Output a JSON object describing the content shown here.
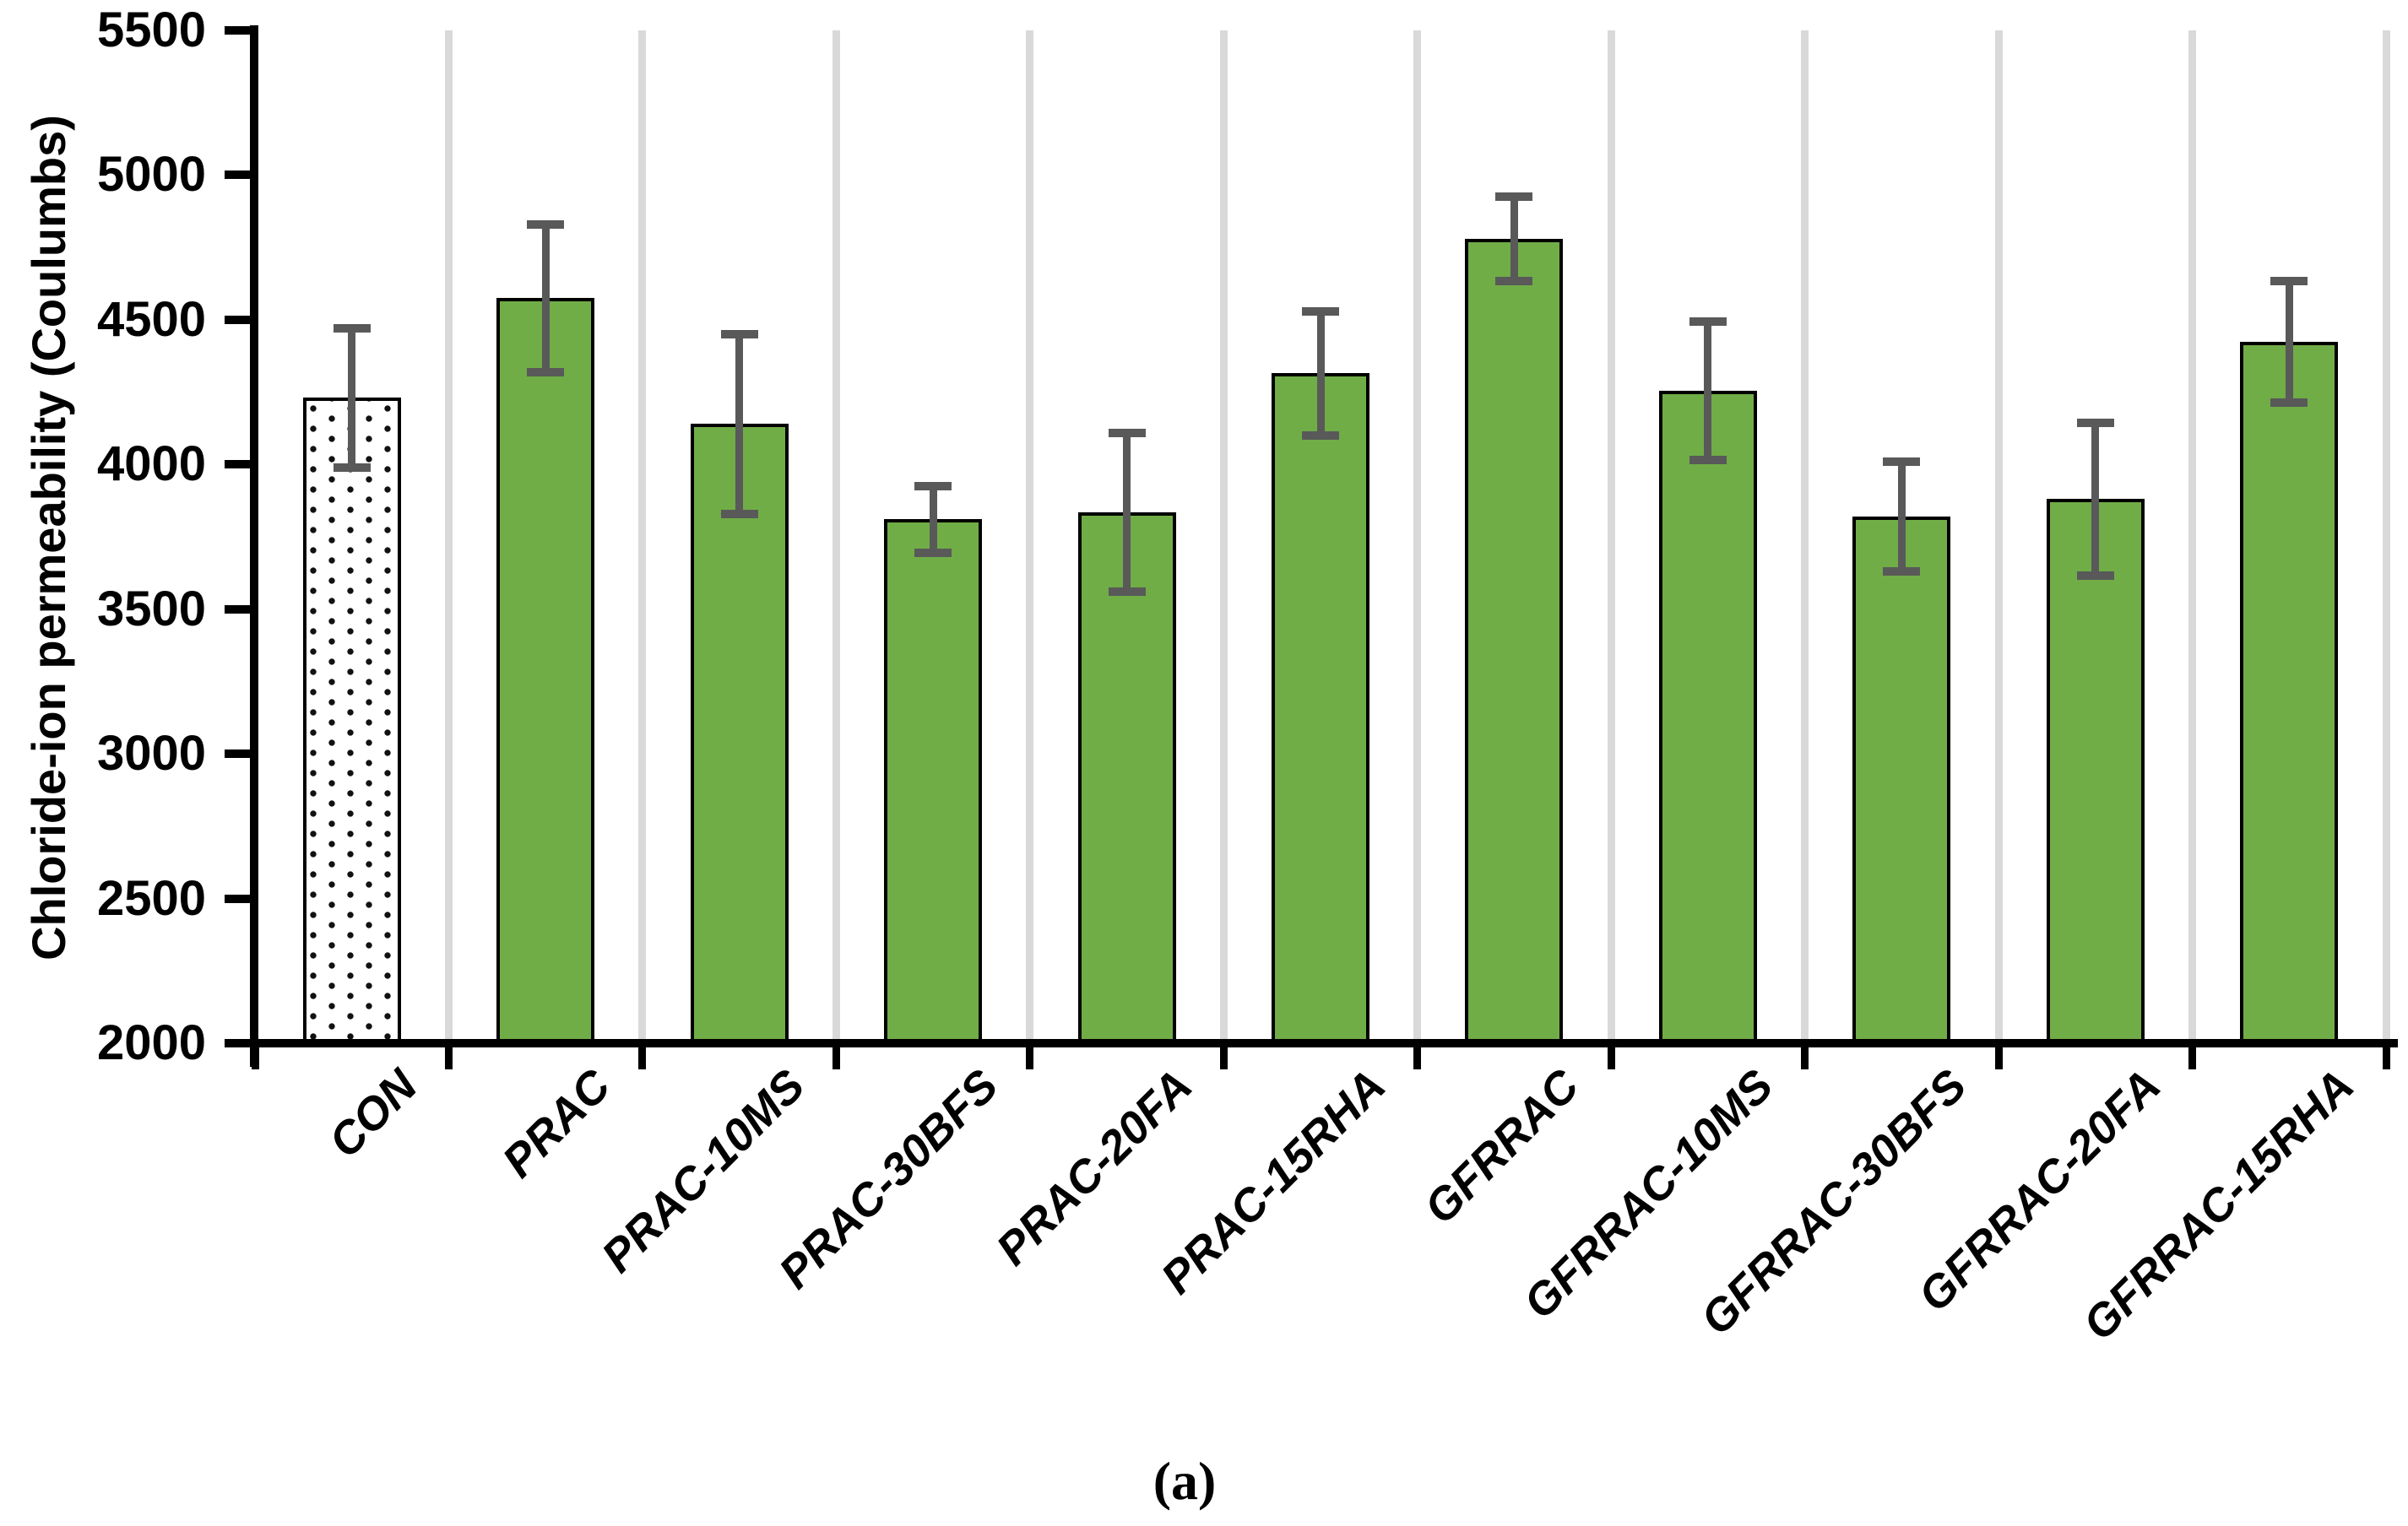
{
  "figure": {
    "caption": "(a)",
    "background": "#FFFFFF"
  },
  "colors": {
    "bar_fill_green": "#70AD47",
    "bar_fill_control": "#FFFFFF",
    "bar_border": "#000000",
    "control_dot": "#111111",
    "error_bar": "#595959",
    "gridline": "#D9D9D9",
    "axis": "#000000",
    "text": "#000000"
  },
  "chart_data": {
    "type": "bar",
    "title": "",
    "xlabel": "",
    "ylabel": "Chloride-ion permeability (Coulumbs)",
    "ylim": [
      2000,
      5500
    ],
    "ytick_step": 500,
    "ytick_labels": [
      "2000",
      "2500",
      "3000",
      "3500",
      "4000",
      "4500",
      "5000",
      "5500"
    ],
    "grid": "vertical light-gray separators between category slots",
    "legend_position": "none",
    "categories": [
      "CON",
      "PRAC",
      "PRAC-10MS",
      "PRAC-30BFS",
      "PRAC-20FA",
      "PRAC-15RHA",
      "GFRRAC",
      "GFRRAC-10MS",
      "GFRRAC-30BFS",
      "GFRRAC-20FA",
      "GFRRAC-15RHA"
    ],
    "values": [
      4230,
      4575,
      4140,
      3810,
      3835,
      4315,
      4780,
      4255,
      3820,
      3880,
      4425
    ],
    "error_plus": [
      240,
      255,
      310,
      115,
      275,
      215,
      145,
      240,
      190,
      265,
      210
    ],
    "error_minus": [
      240,
      255,
      310,
      115,
      275,
      215,
      145,
      240,
      190,
      265,
      210
    ],
    "bar_styles": [
      "dotted",
      "green",
      "green",
      "green",
      "green",
      "green",
      "green",
      "green",
      "green",
      "green",
      "green"
    ]
  }
}
